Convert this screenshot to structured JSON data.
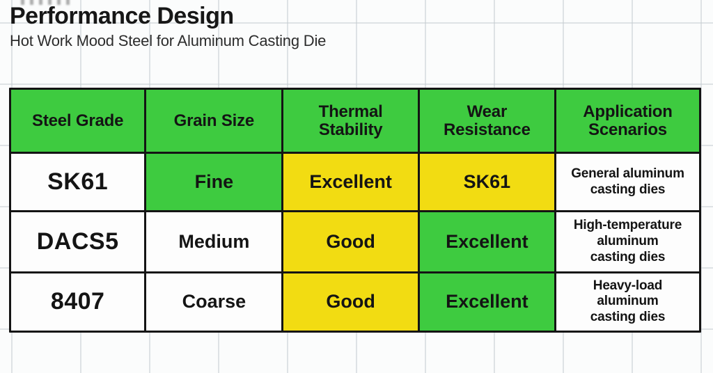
{
  "page": {
    "title": "Performance Design",
    "subtitle": "Hot Work Mood Steel for Aluminum Casting Die"
  },
  "colors": {
    "cell_green": "#3ecb40",
    "cell_yellow": "#f2dc12",
    "cell_white": "#fdfdfd",
    "table_border": "#141414",
    "background_paper": "#fbfcfc"
  },
  "chart_data": {
    "type": "table",
    "title": "Performance Design",
    "subtitle": "Hot Work Mood Steel for Aluminum Casting Die",
    "columns": [
      "Steel Grade",
      "Grain Size",
      "Thermal Stability",
      "Wear Resistance",
      "Application Scenarios"
    ],
    "rows": [
      {
        "cells": [
          {
            "text": "SK61",
            "bg": "white"
          },
          {
            "text": "Fine",
            "bg": "green"
          },
          {
            "text": "Excellent",
            "bg": "yellow"
          },
          {
            "text": "SK61",
            "bg": "yellow"
          },
          {
            "text": "General aluminum\ncasting dies",
            "bg": "white"
          }
        ]
      },
      {
        "cells": [
          {
            "text": "DACS5",
            "bg": "white"
          },
          {
            "text": "Medium",
            "bg": "white"
          },
          {
            "text": "Good",
            "bg": "yellow"
          },
          {
            "text": "Excellent",
            "bg": "green"
          },
          {
            "text": "High-temperature\naluminum\ncasting dies",
            "bg": "white"
          }
        ]
      },
      {
        "cells": [
          {
            "text": "8407",
            "bg": "white"
          },
          {
            "text": "Coarse",
            "bg": "white"
          },
          {
            "text": "Good",
            "bg": "yellow"
          },
          {
            "text": "Excellent",
            "bg": "green"
          },
          {
            "text": "Heavy-load\naluminum\ncasting dies",
            "bg": "white"
          }
        ]
      }
    ]
  }
}
